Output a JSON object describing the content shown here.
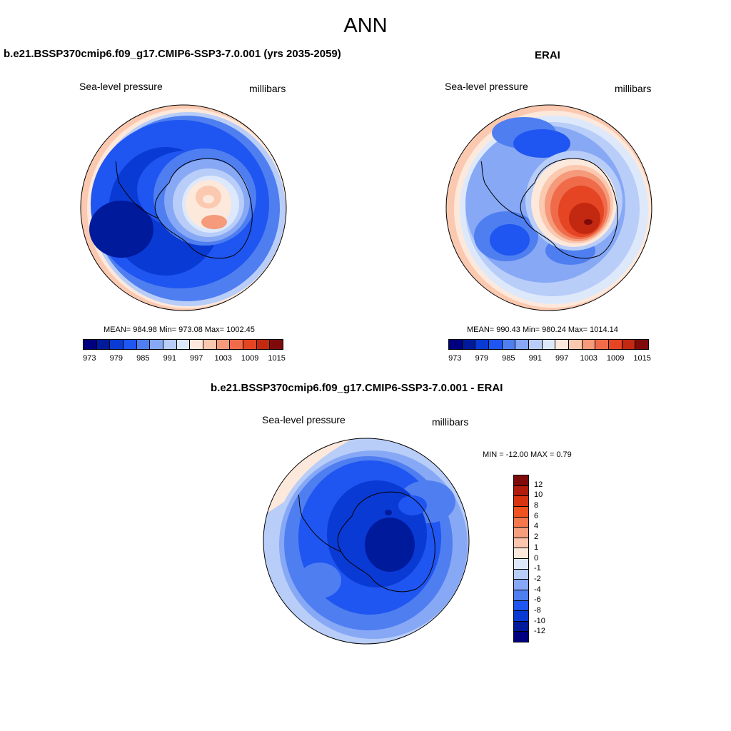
{
  "figure": {
    "title": "ANN"
  },
  "panels": [
    {
      "title": "b.e21.BSSP370cmip6.f09_g17.CMIP6-SSP3-7.0.001 (yrs 2035-2059)",
      "left_label": "Sea-level pressure",
      "right_label": "millibars",
      "stats": "MEAN= 984.98  Min= 973.08  Max= 1002.45",
      "colorbar_ticks": [
        "973",
        "979",
        "985",
        "991",
        "997",
        "1003",
        "1009",
        "1015"
      ]
    },
    {
      "title": "ERAI",
      "left_label": "Sea-level pressure",
      "right_label": "millibars",
      "stats": "MEAN= 990.43  Min= 980.24  Max= 1014.14",
      "colorbar_ticks": [
        "973",
        "979",
        "985",
        "991",
        "997",
        "1003",
        "1009",
        "1015"
      ]
    },
    {
      "title": "b.e21.BSSP370cmip6.f09_g17.CMIP6-SSP3-7.0.001 - ERAI",
      "left_label": "Sea-level pressure",
      "right_label": "millibars",
      "stats": "MIN = -12.00 MAX =   0.79",
      "colorbar_ticks": [
        "12",
        "10",
        "8",
        "6",
        "4",
        "2",
        "1",
        "0",
        "-1",
        "-2",
        "-4",
        "-6",
        "-8",
        "-10",
        "-12"
      ]
    }
  ],
  "colors": {
    "abs_scale": [
      "#00007f",
      "#001a9c",
      "#0a3ad4",
      "#1f55f0",
      "#4f7ef0",
      "#87a8f5",
      "#b8cdf8",
      "#dde9fb",
      "#fde8dc",
      "#fbc8b0",
      "#f59a7a",
      "#ef6b4a",
      "#e54523",
      "#c22910",
      "#7f0a0a"
    ],
    "diff_scale": [
      "#7f0a0a",
      "#b21c0c",
      "#d83410",
      "#f0531f",
      "#f5784c",
      "#f79e7d",
      "#fbc6ad",
      "#fde8dc",
      "#dde9fb",
      "#b8cdf8",
      "#87a8f5",
      "#4f7ef0",
      "#1f55f0",
      "#0a3ad4",
      "#001a9c",
      "#00007f"
    ]
  }
}
